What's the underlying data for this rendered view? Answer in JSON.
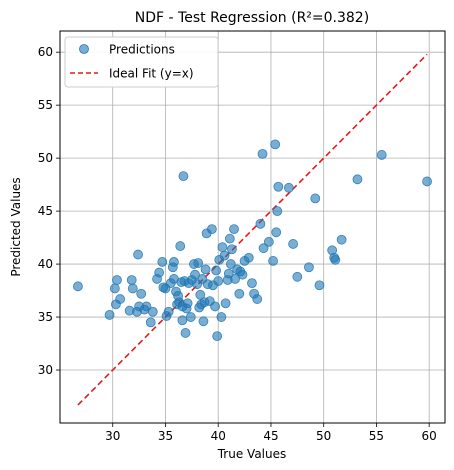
{
  "chart_data": {
    "type": "scatter",
    "title": "NDF - Test Regression (R²=0.382)",
    "xlabel": "True Values",
    "ylabel": "Predicted Values",
    "xlim": [
      25.0,
      61.5
    ],
    "ylim": [
      25.0,
      62.0
    ],
    "xticks": [
      30,
      35,
      40,
      45,
      50,
      55,
      60
    ],
    "yticks": [
      30,
      35,
      40,
      45,
      50,
      55,
      60
    ],
    "grid": true,
    "legend_position": "top-left",
    "colors": {
      "points": "#1f77b4",
      "fit_line": "#e41a1c",
      "grid": "#b0b0b0"
    },
    "series": [
      {
        "name": "Predictions",
        "kind": "scatter",
        "points": [
          [
            26.7,
            37.9
          ],
          [
            29.7,
            35.2
          ],
          [
            30.2,
            37.7
          ],
          [
            30.3,
            36.2
          ],
          [
            30.4,
            38.5
          ],
          [
            30.7,
            36.7
          ],
          [
            31.6,
            35.6
          ],
          [
            31.8,
            38.5
          ],
          [
            31.9,
            37.7
          ],
          [
            32.3,
            35.5
          ],
          [
            32.4,
            40.9
          ],
          [
            32.5,
            36.0
          ],
          [
            32.7,
            37.2
          ],
          [
            33.0,
            35.7
          ],
          [
            33.2,
            36.0
          ],
          [
            33.6,
            34.5
          ],
          [
            33.8,
            35.5
          ],
          [
            34.2,
            38.6
          ],
          [
            34.4,
            39.2
          ],
          [
            34.7,
            40.2
          ],
          [
            34.8,
            37.8
          ],
          [
            35.0,
            37.7
          ],
          [
            35.1,
            35.1
          ],
          [
            35.3,
            35.5
          ],
          [
            35.5,
            38.2
          ],
          [
            35.7,
            39.7
          ],
          [
            35.8,
            40.2
          ],
          [
            35.8,
            38.6
          ],
          [
            36.0,
            37.4
          ],
          [
            36.1,
            36.2
          ],
          [
            36.2,
            37.0
          ],
          [
            36.3,
            36.4
          ],
          [
            36.4,
            41.7
          ],
          [
            36.5,
            38.3
          ],
          [
            36.6,
            34.7
          ],
          [
            36.6,
            36.0
          ],
          [
            36.7,
            48.3
          ],
          [
            36.8,
            38.4
          ],
          [
            36.9,
            33.5
          ],
          [
            37.0,
            35.8
          ],
          [
            37.1,
            36.3
          ],
          [
            37.2,
            38.2
          ],
          [
            37.4,
            35.0
          ],
          [
            37.5,
            38.5
          ],
          [
            37.7,
            40.0
          ],
          [
            37.8,
            39.0
          ],
          [
            38.0,
            38.1
          ],
          [
            38.1,
            40.1
          ],
          [
            38.2,
            35.9
          ],
          [
            38.3,
            37.1
          ],
          [
            38.4,
            36.2
          ],
          [
            38.5,
            38.6
          ],
          [
            38.6,
            34.6
          ],
          [
            38.7,
            36.4
          ],
          [
            38.8,
            39.5
          ],
          [
            38.9,
            42.9
          ],
          [
            39.0,
            38.1
          ],
          [
            39.2,
            36.5
          ],
          [
            39.4,
            43.3
          ],
          [
            39.5,
            38.0
          ],
          [
            39.7,
            36.0
          ],
          [
            39.8,
            39.4
          ],
          [
            39.9,
            33.2
          ],
          [
            40.0,
            38.4
          ],
          [
            40.1,
            40.4
          ],
          [
            40.3,
            35.0
          ],
          [
            40.4,
            41.6
          ],
          [
            40.6,
            40.8
          ],
          [
            40.7,
            36.3
          ],
          [
            40.9,
            38.5
          ],
          [
            41.0,
            39.1
          ],
          [
            41.1,
            42.4
          ],
          [
            41.2,
            40.0
          ],
          [
            41.3,
            41.4
          ],
          [
            41.5,
            43.3
          ],
          [
            41.6,
            38.6
          ],
          [
            41.8,
            39.5
          ],
          [
            42.0,
            37.2
          ],
          [
            42.1,
            39.3
          ],
          [
            42.3,
            39.0
          ],
          [
            42.5,
            40.3
          ],
          [
            42.9,
            40.6
          ],
          [
            43.2,
            38.2
          ],
          [
            43.4,
            37.2
          ],
          [
            43.7,
            36.7
          ],
          [
            44.0,
            43.8
          ],
          [
            44.2,
            50.4
          ],
          [
            44.3,
            41.5
          ],
          [
            44.8,
            42.1
          ],
          [
            45.2,
            40.3
          ],
          [
            45.4,
            51.3
          ],
          [
            45.5,
            43.0
          ],
          [
            45.6,
            45.0
          ],
          [
            45.7,
            47.3
          ],
          [
            46.7,
            47.2
          ],
          [
            47.1,
            41.9
          ],
          [
            47.5,
            38.8
          ],
          [
            48.6,
            39.7
          ],
          [
            49.2,
            46.2
          ],
          [
            49.6,
            38.0
          ],
          [
            50.8,
            41.3
          ],
          [
            51.0,
            40.6
          ],
          [
            51.1,
            40.4
          ],
          [
            51.7,
            42.3
          ],
          [
            53.2,
            48.0
          ],
          [
            55.5,
            50.3
          ],
          [
            59.8,
            47.8
          ]
        ]
      },
      {
        "name": "Ideal Fit (y=x)",
        "kind": "line",
        "from": [
          26.7,
          26.7
        ],
        "to": [
          59.8,
          59.8
        ]
      }
    ]
  }
}
